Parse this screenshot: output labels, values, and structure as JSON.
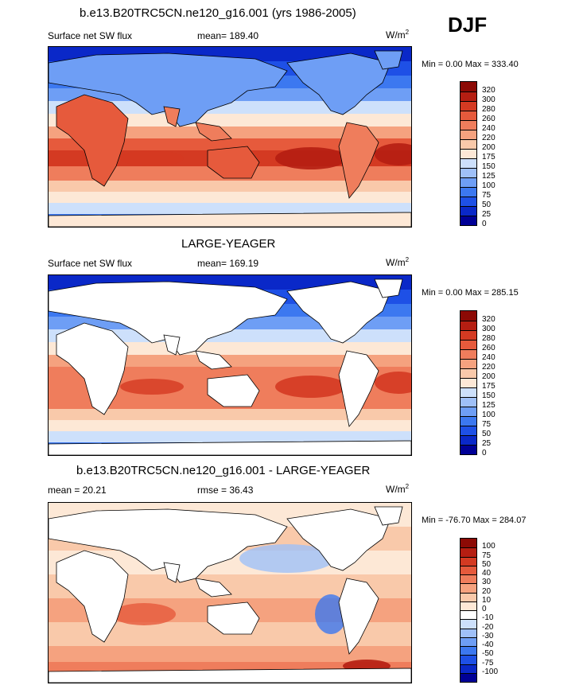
{
  "season": "DJF",
  "colors": {
    "land": "#ffffff",
    "coast": "#000000",
    "flux_scale": [
      "#000096",
      "#0a28c8",
      "#1e50e6",
      "#3c78f0",
      "#6e9ef5",
      "#9fc0f8",
      "#cde0fb",
      "#fde8d6",
      "#f9c9aa",
      "#f5a27f",
      "#ef7d5c",
      "#e65a3c",
      "#d43a22",
      "#b51e12",
      "#8c0a05"
    ],
    "diff_scale": [
      "#000096",
      "#0a28c8",
      "#1e50e6",
      "#3c78f0",
      "#6e9ef5",
      "#9fc0f8",
      "#cde0fb",
      "#ffffff",
      "#fde8d6",
      "#f9c9aa",
      "#f5a27f",
      "#ef7d5c",
      "#e65a3c",
      "#d43a22",
      "#b51e12",
      "#8c0a05"
    ]
  },
  "chart_data": [
    {
      "type": "heatmap",
      "title": "b.e13.B20TRC5CN.ne120_g16.001 (yrs 1986-2005)",
      "left_label": "Surface net SW flux",
      "stat_label": "mean= 189.40",
      "units": "W/m",
      "units_sup": "2",
      "minmax": "Min =   0.00 Max = 333.40",
      "min": 0.0,
      "max": 333.4,
      "mean": 189.4,
      "land_masked": false,
      "levels": [
        "320",
        "300",
        "280",
        "260",
        "240",
        "220",
        "200",
        "175",
        "150",
        "125",
        "100",
        "75",
        "50",
        "25",
        "0"
      ]
    },
    {
      "type": "heatmap",
      "title": "LARGE-YEAGER",
      "left_label": "Surface net SW flux",
      "stat_label": "mean= 169.19",
      "units": "W/m",
      "units_sup": "2",
      "minmax": "Min =   0.00 Max = 285.15",
      "min": 0.0,
      "max": 285.15,
      "mean": 169.19,
      "land_masked": true,
      "levels": [
        "320",
        "300",
        "280",
        "260",
        "240",
        "220",
        "200",
        "175",
        "150",
        "125",
        "100",
        "75",
        "50",
        "25",
        "0"
      ]
    },
    {
      "type": "heatmap",
      "title": "b.e13.B20TRC5CN.ne120_g16.001 - LARGE-YEAGER",
      "left_label": "mean =  20.21",
      "stat_label": "rmse =  36.43",
      "units": "W/m",
      "units_sup": "2",
      "minmax": "Min = -76.70 Max = 284.07",
      "min": -76.7,
      "max": 284.07,
      "mean": 20.21,
      "rmse": 36.43,
      "land_masked": true,
      "levels": [
        "100",
        "75",
        "50",
        "40",
        "30",
        "20",
        "10",
        "0",
        "-10",
        "-20",
        "-30",
        "-40",
        "-50",
        "-75",
        "-100"
      ]
    }
  ]
}
